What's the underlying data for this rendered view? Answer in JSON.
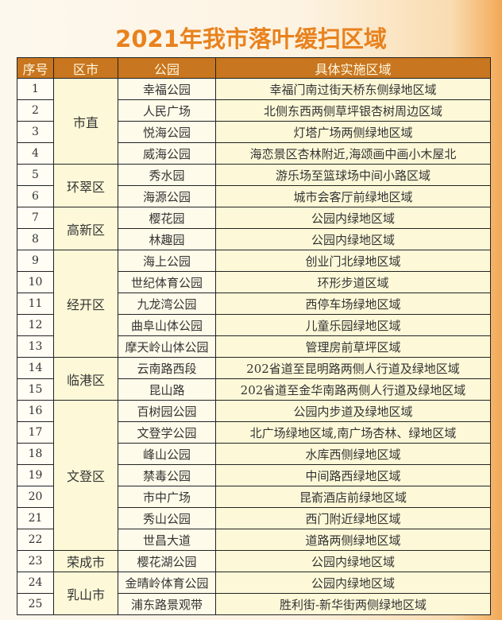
{
  "title": "2021年我市落叶缓扫区域",
  "headers": [
    "序号",
    "区市",
    "公园",
    "具体实施区域"
  ],
  "groups": [
    {
      "district": "市直",
      "rows": [
        [
          "1",
          "幸福公园",
          "幸福门南过街天桥东侧绿地区域"
        ],
        [
          "2",
          "人民广场",
          "北侧东西两侧草坪银杏树周边区域"
        ],
        [
          "3",
          "悦海公园",
          "灯塔广场两侧绿地区域"
        ],
        [
          "4",
          "威海公园",
          "海恋景区杏林附近,海颂画中画小木屋北"
        ]
      ]
    },
    {
      "district": "环翠区",
      "rows": [
        [
          "5",
          "秀水园",
          "游乐场至篮球场中间小路区域"
        ],
        [
          "6",
          "海源公园",
          "城市会客厅前绿地区域"
        ]
      ]
    },
    {
      "district": "高新区",
      "rows": [
        [
          "7",
          "樱花园",
          "公园内绿地区域"
        ],
        [
          "8",
          "林趣园",
          "公园内绿地区域"
        ]
      ]
    },
    {
      "district": "经开区",
      "rows": [
        [
          "9",
          "海上公园",
          "创业门北绿地区域"
        ],
        [
          "10",
          "世纪体育公园",
          "环形步道区域"
        ],
        [
          "11",
          "九龙湾公园",
          "西停车场绿地区域"
        ],
        [
          "12",
          "曲阜山体公园",
          "儿童乐园绿地区域"
        ],
        [
          "13",
          "摩天岭山体公园",
          "管理房前草坪区域"
        ]
      ]
    },
    {
      "district": "临港区",
      "rows": [
        [
          "14",
          "云南路西段",
          "202省道至昆明路两侧人行道及绿地区域"
        ],
        [
          "15",
          "昆山路",
          "202省道至金华南路两侧人行道及绿地区域"
        ]
      ]
    },
    {
      "district": "文登区",
      "rows": [
        [
          "16",
          "百树园公园",
          "公园内步道及绿地区域"
        ],
        [
          "17",
          "文登学公园",
          "北广场绿地区域,南广场杏林、绿地区域"
        ],
        [
          "18",
          "峰山公园",
          "水库西侧绿地区域"
        ],
        [
          "19",
          "禁毒公园",
          "中间路西绿地区域"
        ],
        [
          "20",
          "市中广场",
          "昆嵛酒店前绿地区域"
        ],
        [
          "21",
          "秀山公园",
          "西门附近绿地区域"
        ],
        [
          "22",
          "世昌大道",
          "道路两侧绿地区域"
        ]
      ]
    },
    {
      "district": "荣成市",
      "rows": [
        [
          "23",
          "樱花湖公园",
          "公园内绿地区域"
        ]
      ]
    },
    {
      "district": "乳山市",
      "rows": [
        [
          "24",
          "金晴岭体育公园",
          "公园内绿地区域"
        ],
        [
          "25",
          "浦东路景观带",
          "胜利街-新华街两侧绿地区域"
        ]
      ]
    }
  ]
}
